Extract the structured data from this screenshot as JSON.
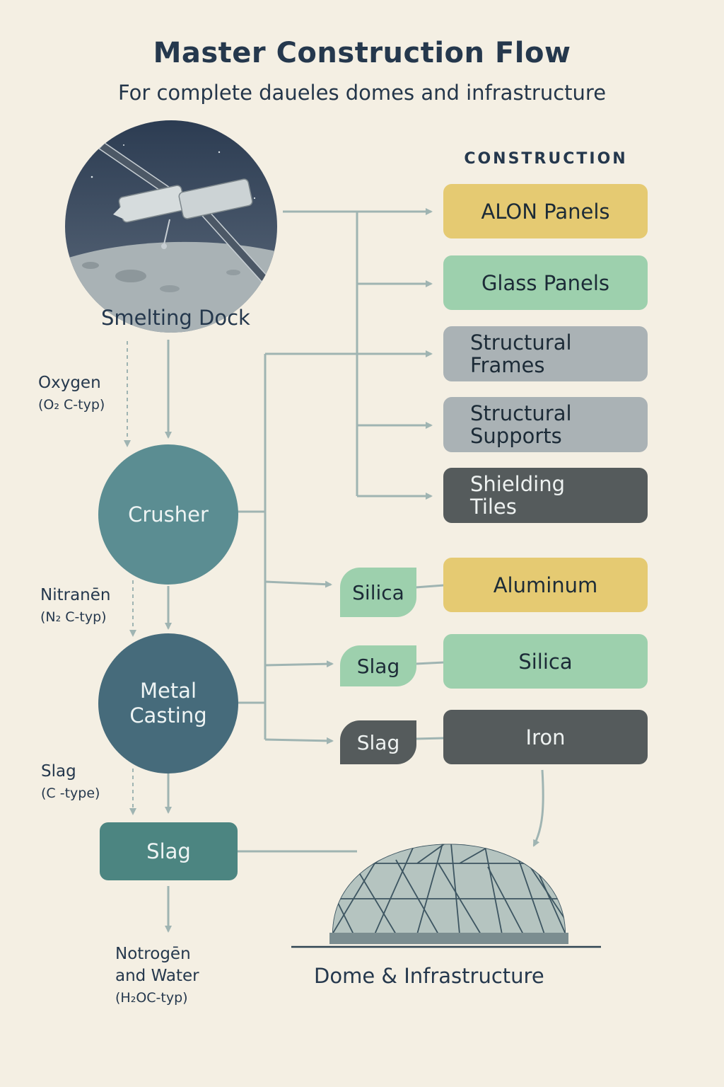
{
  "title": "Master Construction Flow",
  "subtitle": "For complete daueles domes and infrastructure",
  "construction_heading": "CONSTRUCTION",
  "nodes": {
    "smelting_dock": "Smelting Dock",
    "crusher": "Crusher",
    "metal_casting_line1": "Metal",
    "metal_casting_line2": "Casting",
    "slag": "Slag",
    "dome": "Dome & Infrastructure"
  },
  "side_labels": {
    "oxygen": "Oxygen",
    "oxygen_sub": "(O₂ C-typ)",
    "nitranen": "Nitranēn",
    "nitranen_sub": "(N₂ C-typ)",
    "slag": "Slag",
    "slag_sub": "(C -type)",
    "notrogen_line1": "Notrogēn",
    "notrogen_line2": "and Water",
    "notrogen_sub": "(H₂OC-typ)"
  },
  "construction_items": [
    {
      "line1": "ALON Panels",
      "line2": "",
      "color": "#e5ca72"
    },
    {
      "line1": "Glass Panels",
      "line2": "",
      "color": "#9dd0ad"
    },
    {
      "line1": "Structural",
      "line2": "Frames",
      "color": "#aab2b5"
    },
    {
      "line1": "Structural",
      "line2": "Supports",
      "color": "#aab2b5"
    },
    {
      "line1": "Shielding",
      "line2": "Tiles",
      "color": "#555b5c"
    }
  ],
  "intermediates": [
    {
      "label": "Silica",
      "color": "#9dd0ad"
    },
    {
      "label": "Slag",
      "color": "#9dd0ad"
    },
    {
      "label": "Slag",
      "color": "#555b5c"
    }
  ],
  "materials": [
    {
      "label": "Aluminum",
      "color": "#e5ca72"
    },
    {
      "label": "Silica",
      "color": "#9dd0ad"
    },
    {
      "label": "Iron",
      "color": "#555b5c"
    }
  ],
  "colors": {
    "background": "#f4efe3",
    "crusher": "#5b8d92",
    "metal_casting": "#466b7b",
    "slag_box": "#4c8581",
    "connector": "#9fb4b2"
  }
}
